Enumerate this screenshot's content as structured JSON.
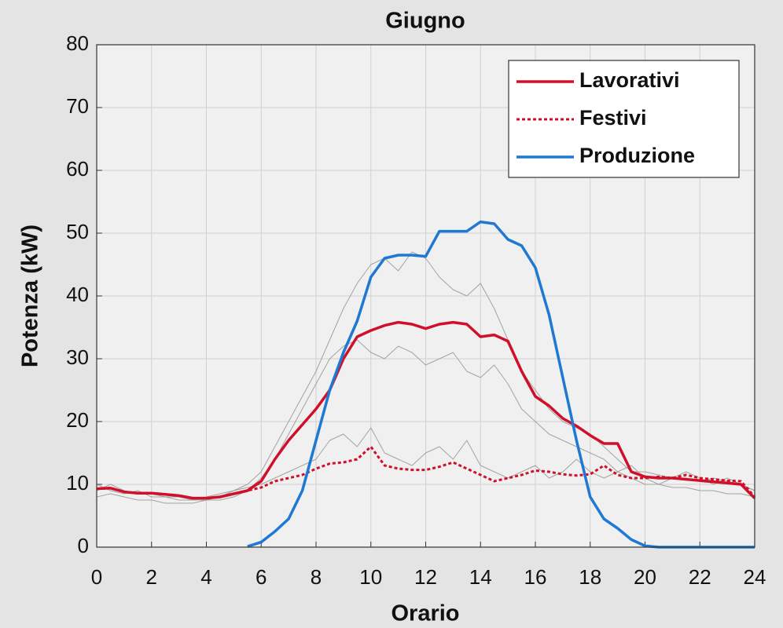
{
  "chart_data": {
    "type": "line",
    "title": "Giugno",
    "xlabel": "Orario",
    "ylabel": "Potenza (kW)",
    "x": [
      0,
      0.5,
      1,
      1.5,
      2,
      2.5,
      3,
      3.5,
      4,
      4.5,
      5,
      5.5,
      6,
      6.5,
      7,
      7.5,
      8,
      8.5,
      9,
      9.5,
      10,
      10.5,
      11,
      11.5,
      12,
      12.5,
      13,
      13.5,
      14,
      14.5,
      15,
      15.5,
      16,
      16.5,
      17,
      17.5,
      18,
      18.5,
      19,
      19.5,
      20,
      20.5,
      21,
      21.5,
      22,
      22.5,
      23,
      23.5,
      24
    ],
    "series": [
      {
        "color": "#9a9a9a",
        "style": "thin",
        "values": [
          9,
          10,
          9,
          8.5,
          8.5,
          8,
          8,
          7.5,
          7.5,
          8,
          9,
          10,
          12,
          16,
          20,
          24,
          28,
          33,
          38,
          42,
          45,
          46,
          44,
          47,
          46,
          43,
          41,
          40,
          42,
          38,
          33,
          28,
          25,
          22,
          20,
          19,
          18,
          16,
          14,
          12,
          12,
          11.5,
          11,
          11,
          10.5,
          11,
          10.5,
          10,
          9
        ]
      },
      {
        "color": "#9a9a9a",
        "style": "thin",
        "values": [
          10,
          9,
          8.5,
          9,
          8,
          8,
          7.5,
          7.5,
          8,
          8.5,
          9,
          9.5,
          10,
          11,
          12,
          13,
          14,
          17,
          18,
          16,
          19,
          15,
          14,
          13,
          15,
          16,
          14,
          17,
          13,
          12,
          11,
          12,
          13,
          11,
          12,
          14,
          12,
          11,
          12,
          13,
          11,
          10,
          11,
          12,
          11,
          10,
          11,
          10,
          9
        ]
      },
      {
        "color": "#9a9a9a",
        "style": "thin",
        "values": [
          8,
          8.5,
          8,
          7.5,
          7.5,
          7,
          7,
          7,
          7.5,
          7.5,
          8,
          9,
          11,
          14,
          18,
          22,
          26,
          30,
          32,
          33,
          31,
          30,
          32,
          31,
          29,
          30,
          31,
          28,
          27,
          29,
          26,
          22,
          20,
          18,
          17,
          16,
          15,
          14,
          12,
          11,
          10,
          10,
          9.5,
          9.5,
          9,
          9,
          8.5,
          8.5,
          8
        ]
      },
      {
        "name": "Lavorativi",
        "color": "#d0102a",
        "style": "solid",
        "values": [
          9.3,
          9.4,
          8.8,
          8.6,
          8.6,
          8.4,
          8.2,
          7.8,
          7.8,
          8,
          8.5,
          9,
          10.5,
          14,
          17,
          19.5,
          22,
          25,
          30,
          33.5,
          34.5,
          35.3,
          35.8,
          35.5,
          34.8,
          35.5,
          35.8,
          35.5,
          33.5,
          33.8,
          32.8,
          28,
          24,
          22.5,
          20.5,
          19.3,
          17.8,
          16.5,
          16.5,
          12,
          11.2,
          11,
          11,
          10.8,
          10.6,
          10.4,
          10.2,
          10,
          7.8
        ]
      },
      {
        "name": "Festivi",
        "color": "#d0102a",
        "style": "dotted",
        "values": [
          9.3,
          9.4,
          8.8,
          8.6,
          8.6,
          8.4,
          8.2,
          7.8,
          7.8,
          8,
          8.5,
          9,
          9.5,
          10.5,
          11,
          11.5,
          12.5,
          13.3,
          13.5,
          14,
          16,
          13,
          12.5,
          12.3,
          12.3,
          12.8,
          13.5,
          12.5,
          11.5,
          10.5,
          11,
          11.5,
          12.2,
          12,
          11.6,
          11.4,
          11.6,
          13,
          11.5,
          11,
          11,
          11.2,
          11,
          11.5,
          11,
          10.8,
          10.6,
          10.5,
          8
        ]
      },
      {
        "name": "Produzione",
        "color": "#1f78d1",
        "style": "solid",
        "values": [
          null,
          null,
          null,
          null,
          null,
          null,
          null,
          null,
          null,
          null,
          null,
          0.1,
          0.8,
          2.5,
          4.5,
          9,
          17,
          25,
          31,
          36,
          43,
          46,
          46.5,
          46.5,
          46.3,
          50.3,
          50.3,
          50.3,
          51.8,
          51.5,
          49,
          48,
          44.5,
          37,
          27,
          17,
          8,
          4.5,
          3,
          1.2,
          0.2,
          0,
          0,
          0,
          0,
          0,
          0,
          0,
          0
        ]
      }
    ],
    "xlim": [
      0,
      24
    ],
    "xticks": [
      0,
      2,
      4,
      6,
      8,
      10,
      12,
      14,
      16,
      18,
      20,
      22,
      24
    ],
    "ylim": [
      0,
      80
    ],
    "yticks": [
      0,
      10,
      20,
      30,
      40,
      50,
      60,
      70,
      80
    ],
    "grid": true,
    "legend": "upper right"
  }
}
